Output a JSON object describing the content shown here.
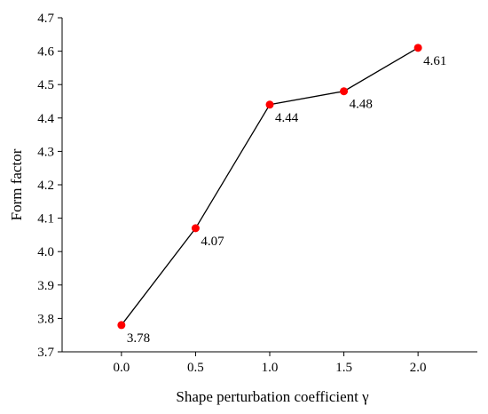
{
  "chart_data": {
    "type": "line",
    "title": "",
    "xlabel": "Shape perturbation coefficient  γ",
    "ylabel": "Form factor",
    "x": [
      0.0,
      0.5,
      1.0,
      1.5,
      2.0
    ],
    "series": [
      {
        "values": [
          3.78,
          4.07,
          4.44,
          4.48,
          4.61
        ],
        "labels": [
          "3.78",
          "4.07",
          "4.44",
          "4.48",
          "4.61"
        ],
        "color": "#ff0000",
        "line_color": "#000000"
      }
    ],
    "xlim": [
      -0.4,
      2.4
    ],
    "ylim": [
      3.7,
      4.7
    ],
    "xticks": [
      0.0,
      0.5,
      1.0,
      1.5,
      2.0
    ],
    "xtick_labels": [
      "0.0",
      "0.5",
      "1.0",
      "1.5",
      "2.0"
    ],
    "yticks": [
      3.7,
      3.8,
      3.9,
      4.0,
      4.1,
      4.2,
      4.3,
      4.4,
      4.5,
      4.6,
      4.7
    ],
    "ytick_labels": [
      "3.7",
      "3.8",
      "3.9",
      "4.0",
      "4.1",
      "4.2",
      "4.3",
      "4.4",
      "4.5",
      "4.6",
      "4.7"
    ],
    "grid": false,
    "legend": "none"
  }
}
